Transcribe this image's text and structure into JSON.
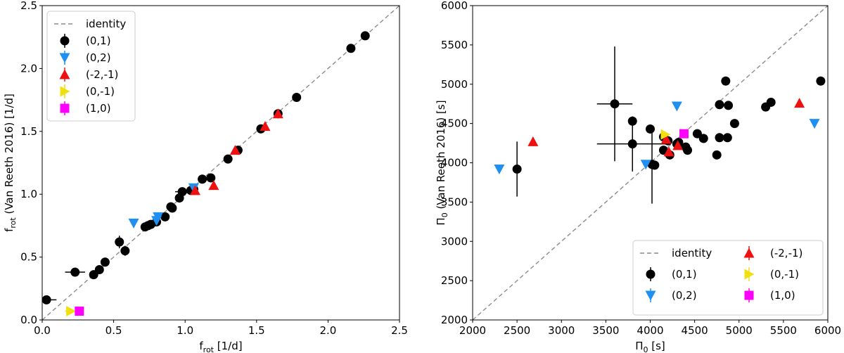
{
  "chart_data": [
    {
      "type": "scatter",
      "xlabel": "f_rot [1/d]",
      "ylabel": "f_rot (Van Reeth 2016) [1/d]",
      "xlabel_parts": {
        "base": "f",
        "sub": "rot",
        "rest": " [1/d]"
      },
      "ylabel_parts": {
        "base": "f",
        "sub": "rot",
        "rest": " (Van Reeth 2016) [1/d]"
      },
      "xlim": [
        0.0,
        2.5
      ],
      "ylim": [
        0.0,
        2.5
      ],
      "xticks": [
        "0.0",
        "0.5",
        "1.0",
        "1.5",
        "2.0",
        "2.5"
      ],
      "yticks": [
        "0.0",
        "0.5",
        "1.0",
        "1.5",
        "2.0",
        "2.5"
      ],
      "legend_position": "upper-left",
      "legend_columns": 1,
      "identity_label": "identity",
      "series": [
        {
          "name": "(0,1)",
          "color": "#000000",
          "marker": "circle",
          "points": [
            {
              "x": 0.03,
              "y": 0.16,
              "xerr": 0.07,
              "yerr": 0.0
            },
            {
              "x": 0.23,
              "y": 0.38,
              "xerr": 0.07,
              "yerr": 0.0
            },
            {
              "x": 0.36,
              "y": 0.36,
              "xerr": 0.03,
              "yerr": 0.0
            },
            {
              "x": 0.4,
              "y": 0.4,
              "xerr": 0.0,
              "yerr": 0.0
            },
            {
              "x": 0.44,
              "y": 0.46,
              "xerr": 0.0,
              "yerr": 0.0
            },
            {
              "x": 0.54,
              "y": 0.62,
              "xerr": 0.02,
              "yerr": 0.05
            },
            {
              "x": 0.58,
              "y": 0.55,
              "xerr": 0.0,
              "yerr": 0.04
            },
            {
              "x": 0.72,
              "y": 0.74,
              "xerr": 0.0,
              "yerr": 0.0
            },
            {
              "x": 0.74,
              "y": 0.75,
              "xerr": 0.0,
              "yerr": 0.0
            },
            {
              "x": 0.76,
              "y": 0.76,
              "xerr": 0.0,
              "yerr": 0.0
            },
            {
              "x": 0.8,
              "y": 0.78,
              "xerr": 0.0,
              "yerr": 0.0
            },
            {
              "x": 0.86,
              "y": 0.82,
              "xerr": 0.0,
              "yerr": 0.0
            },
            {
              "x": 0.9,
              "y": 0.9,
              "xerr": 0.0,
              "yerr": 0.0
            },
            {
              "x": 0.91,
              "y": 0.89,
              "xerr": 0.0,
              "yerr": 0.0
            },
            {
              "x": 0.96,
              "y": 0.97,
              "xerr": 0.0,
              "yerr": 0.0
            },
            {
              "x": 0.98,
              "y": 1.02,
              "xerr": 0.05,
              "yerr": 0.0
            },
            {
              "x": 1.04,
              "y": 1.03,
              "xerr": 0.0,
              "yerr": 0.0
            },
            {
              "x": 1.06,
              "y": 1.04,
              "xerr": 0.0,
              "yerr": 0.0
            },
            {
              "x": 1.12,
              "y": 1.12,
              "xerr": 0.0,
              "yerr": 0.0
            },
            {
              "x": 1.18,
              "y": 1.13,
              "xerr": 0.0,
              "yerr": 0.0
            },
            {
              "x": 1.3,
              "y": 1.28,
              "xerr": 0.0,
              "yerr": 0.0
            },
            {
              "x": 1.37,
              "y": 1.35,
              "xerr": 0.0,
              "yerr": 0.0
            },
            {
              "x": 1.53,
              "y": 1.52,
              "xerr": 0.0,
              "yerr": 0.0
            },
            {
              "x": 1.65,
              "y": 1.64,
              "xerr": 0.0,
              "yerr": 0.0
            },
            {
              "x": 1.78,
              "y": 1.77,
              "xerr": 0.0,
              "yerr": 0.0
            },
            {
              "x": 2.16,
              "y": 2.16,
              "xerr": 0.0,
              "yerr": 0.0
            },
            {
              "x": 2.26,
              "y": 2.26,
              "xerr": 0.0,
              "yerr": 0.0
            }
          ]
        },
        {
          "name": "(0,2)",
          "color": "#1f8ff0",
          "marker": "triangle-down",
          "points": [
            {
              "x": 0.64,
              "y": 0.77,
              "xerr": 0.0,
              "yerr": 0.0
            },
            {
              "x": 0.8,
              "y": 0.79,
              "xerr": 0.0,
              "yerr": 0.0
            },
            {
              "x": 0.81,
              "y": 0.82,
              "xerr": 0.0,
              "yerr": 0.0
            },
            {
              "x": 1.06,
              "y": 1.05,
              "xerr": 0.0,
              "yerr": 0.0
            }
          ]
        },
        {
          "name": "(-2,-1)",
          "color": "#ee1111",
          "marker": "triangle-up",
          "points": [
            {
              "x": 1.07,
              "y": 1.03,
              "xerr": 0.0,
              "yerr": 0.0
            },
            {
              "x": 1.2,
              "y": 1.07,
              "xerr": 0.0,
              "yerr": 0.0
            },
            {
              "x": 1.35,
              "y": 1.35,
              "xerr": 0.0,
              "yerr": 0.0
            },
            {
              "x": 1.56,
              "y": 1.54,
              "xerr": 0.0,
              "yerr": 0.0
            },
            {
              "x": 1.65,
              "y": 1.64,
              "xerr": 0.0,
              "yerr": 0.0
            }
          ]
        },
        {
          "name": "(0,-1)",
          "color": "#f0e010",
          "marker": "triangle-right",
          "points": [
            {
              "x": 0.2,
              "y": 0.07,
              "xerr": 0.04,
              "yerr": 0.0
            }
          ]
        },
        {
          "name": "(1,0)",
          "color": "#ff00ff",
          "marker": "square",
          "points": [
            {
              "x": 0.26,
              "y": 0.07,
              "xerr": 0.0,
              "yerr": 0.0
            }
          ]
        }
      ]
    },
    {
      "type": "scatter",
      "xlabel": "Π0 [s]",
      "ylabel": "Π0 (Van Reeth 2016) [s]",
      "xlabel_parts": {
        "base": "Π",
        "sub": "0",
        "rest": " [s]"
      },
      "ylabel_parts": {
        "base": "Π",
        "sub": "0",
        "rest": " (Van Reeth 2016) [s]"
      },
      "xlim": [
        2000,
        6000
      ],
      "ylim": [
        2000,
        6000
      ],
      "xticks": [
        "2000",
        "2500",
        "3000",
        "3500",
        "4000",
        "4500",
        "5000",
        "5500",
        "6000"
      ],
      "yticks": [
        "2000",
        "2500",
        "3000",
        "3500",
        "4000",
        "4500",
        "5000",
        "5500",
        "6000"
      ],
      "legend_position": "lower-right",
      "legend_columns": 2,
      "identity_label": "identity",
      "series": [
        {
          "name": "(0,1)",
          "color": "#000000",
          "marker": "circle",
          "points": [
            {
              "x": 2500,
              "y": 3920,
              "xerr": 0,
              "yerr": 350
            },
            {
              "x": 3600,
              "y": 4750,
              "xerr": 200,
              "yerr": 730
            },
            {
              "x": 3800,
              "y": 4530,
              "xerr": 0,
              "yerr": 0
            },
            {
              "x": 3800,
              "y": 4240,
              "xerr": 400,
              "yerr": 350
            },
            {
              "x": 4000,
              "y": 4430,
              "xerr": 0,
              "yerr": 0
            },
            {
              "x": 4020,
              "y": 3980,
              "xerr": 0,
              "yerr": 500
            },
            {
              "x": 4050,
              "y": 3970,
              "xerr": 0,
              "yerr": 0
            },
            {
              "x": 4150,
              "y": 4330,
              "xerr": 0,
              "yerr": 0
            },
            {
              "x": 4150,
              "y": 4160,
              "xerr": 0,
              "yerr": 0
            },
            {
              "x": 4200,
              "y": 4280,
              "xerr": 0,
              "yerr": 0
            },
            {
              "x": 4220,
              "y": 4100,
              "xerr": 0,
              "yerr": 0
            },
            {
              "x": 4300,
              "y": 4240,
              "xerr": 0,
              "yerr": 0
            },
            {
              "x": 4320,
              "y": 4260,
              "xerr": 0,
              "yerr": 0
            },
            {
              "x": 4400,
              "y": 4200,
              "xerr": 0,
              "yerr": 0
            },
            {
              "x": 4420,
              "y": 4160,
              "xerr": 0,
              "yerr": 0
            },
            {
              "x": 4530,
              "y": 4370,
              "xerr": 0,
              "yerr": 0
            },
            {
              "x": 4600,
              "y": 4310,
              "xerr": 0,
              "yerr": 0
            },
            {
              "x": 4750,
              "y": 4100,
              "xerr": 0,
              "yerr": 0
            },
            {
              "x": 4780,
              "y": 4320,
              "xerr": 0,
              "yerr": 0
            },
            {
              "x": 4780,
              "y": 4740,
              "xerr": 0,
              "yerr": 0
            },
            {
              "x": 4850,
              "y": 5040,
              "xerr": 0,
              "yerr": 0
            },
            {
              "x": 4870,
              "y": 4320,
              "xerr": 0,
              "yerr": 0
            },
            {
              "x": 4880,
              "y": 4730,
              "xerr": 0,
              "yerr": 0
            },
            {
              "x": 4950,
              "y": 4500,
              "xerr": 0,
              "yerr": 0
            },
            {
              "x": 5300,
              "y": 4710,
              "xerr": 0,
              "yerr": 0
            },
            {
              "x": 5360,
              "y": 4770,
              "xerr": 0,
              "yerr": 0
            },
            {
              "x": 5920,
              "y": 5040,
              "xerr": 0,
              "yerr": 0
            }
          ]
        },
        {
          "name": "(0,2)",
          "color": "#1f8ff0",
          "marker": "triangle-down",
          "points": [
            {
              "x": 2300,
              "y": 3920,
              "xerr": 0,
              "yerr": 0
            },
            {
              "x": 3950,
              "y": 3980,
              "xerr": 0,
              "yerr": 0
            },
            {
              "x": 4300,
              "y": 4720,
              "xerr": 0,
              "yerr": 0
            },
            {
              "x": 5850,
              "y": 4500,
              "xerr": 0,
              "yerr": 0
            }
          ]
        },
        {
          "name": "(-2,-1)",
          "color": "#ee1111",
          "marker": "triangle-up",
          "points": [
            {
              "x": 2680,
              "y": 4270,
              "xerr": 0,
              "yerr": 0
            },
            {
              "x": 4180,
              "y": 4300,
              "xerr": 0,
              "yerr": 0
            },
            {
              "x": 4210,
              "y": 4140,
              "xerr": 0,
              "yerr": 0
            },
            {
              "x": 4310,
              "y": 4220,
              "xerr": 0,
              "yerr": 0
            },
            {
              "x": 5680,
              "y": 4760,
              "xerr": 0,
              "yerr": 0
            }
          ]
        },
        {
          "name": "(0,-1)",
          "color": "#f0e010",
          "marker": "triangle-right",
          "points": [
            {
              "x": 4170,
              "y": 4360,
              "xerr": 0,
              "yerr": 0
            }
          ]
        },
        {
          "name": "(1,0)",
          "color": "#ff00ff",
          "marker": "square",
          "points": [
            {
              "x": 4380,
              "y": 4370,
              "xerr": 0,
              "yerr": 0
            }
          ]
        }
      ]
    }
  ]
}
